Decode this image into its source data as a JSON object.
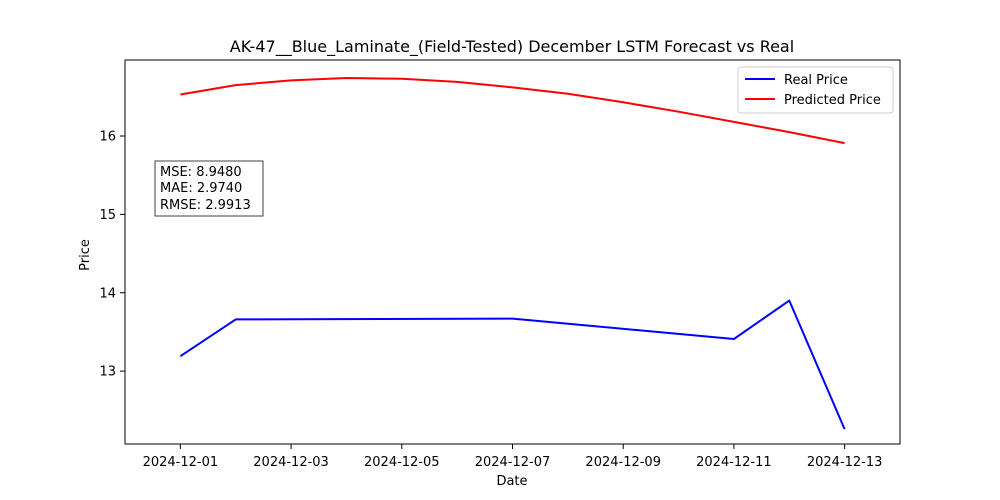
{
  "chart_data": {
    "type": "line",
    "title": "AK-47__Blue_Laminate_(Field-Tested) December LSTM Forecast vs Real",
    "xlabel": "Date",
    "ylabel": "Price",
    "x_ticks": [
      "2024-12-01",
      "2024-12-03",
      "2024-12-05",
      "2024-12-07",
      "2024-12-09",
      "2024-12-11",
      "2024-12-13"
    ],
    "y_ticks": [
      13,
      14,
      15,
      16
    ],
    "ylim": [
      12.07,
      16.97
    ],
    "xlim": [
      "2024-11-30",
      "2024-12-14"
    ],
    "grid": false,
    "legend_position": "top-right",
    "series": [
      {
        "name": "Real Price",
        "color": "#0000ff",
        "points": [
          {
            "x": "2024-12-01",
            "y": 13.19
          },
          {
            "x": "2024-12-02",
            "y": 13.66
          },
          {
            "x": "2024-12-07",
            "y": 13.67
          },
          {
            "x": "2024-12-11",
            "y": 13.41
          },
          {
            "x": "2024-12-12",
            "y": 13.9
          },
          {
            "x": "2024-12-13",
            "y": 12.26
          }
        ]
      },
      {
        "name": "Predicted Price",
        "color": "#ff0000",
        "points": [
          {
            "x": "2024-12-01",
            "y": 16.53
          },
          {
            "x": "2024-12-02",
            "y": 16.65
          },
          {
            "x": "2024-12-03",
            "y": 16.71
          },
          {
            "x": "2024-12-04",
            "y": 16.74
          },
          {
            "x": "2024-12-05",
            "y": 16.73
          },
          {
            "x": "2024-12-06",
            "y": 16.69
          },
          {
            "x": "2024-12-07",
            "y": 16.62
          },
          {
            "x": "2024-12-08",
            "y": 16.54
          },
          {
            "x": "2024-12-09",
            "y": 16.43
          },
          {
            "x": "2024-12-10",
            "y": 16.31
          },
          {
            "x": "2024-12-11",
            "y": 16.18
          },
          {
            "x": "2024-12-12",
            "y": 16.05
          },
          {
            "x": "2024-12-13",
            "y": 15.91
          }
        ]
      }
    ],
    "annotation": [
      "MSE: 8.9480",
      "MAE: 2.9740",
      "RMSE: 2.9913"
    ]
  }
}
